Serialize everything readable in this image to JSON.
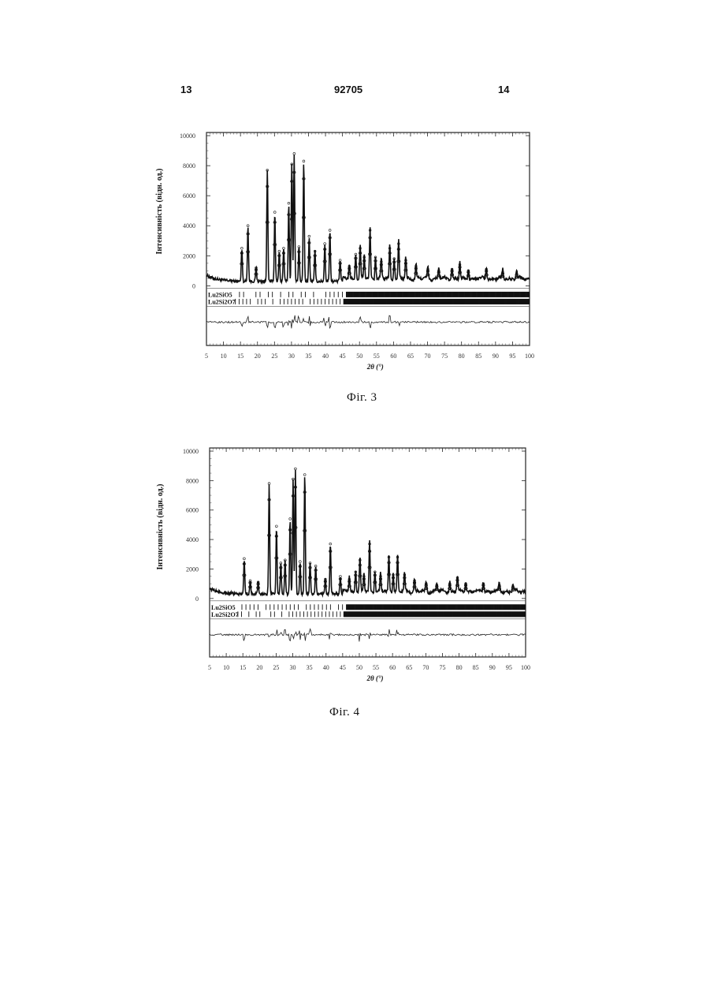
{
  "header": {
    "left_page": "13",
    "patent_number": "92705",
    "right_page": "14"
  },
  "figures": [
    {
      "caption": "Фіг. 3"
    },
    {
      "caption": "Фіг. 4"
    }
  ],
  "chart_data": [
    {
      "type": "line",
      "title": "",
      "xlabel": "2θ (°)",
      "ylabel": "Інтенсивність (відн. од.)",
      "xlim": [
        5,
        100
      ],
      "ylim": [
        0,
        10000
      ],
      "x_ticks": [
        "5",
        "10",
        "15",
        "20",
        "25",
        "30",
        "35",
        "40",
        "45",
        "50",
        "55",
        "60",
        "65",
        "70",
        "75",
        "80",
        "85",
        "90",
        "95",
        "100"
      ],
      "y_ticks": [
        "0",
        "2000",
        "4000",
        "6000",
        "8000",
        "10000"
      ],
      "background": 300,
      "peaks": [
        [
          15.4,
          2200
        ],
        [
          17.2,
          3700
        ],
        [
          19.6,
          900
        ],
        [
          22.9,
          7400
        ],
        [
          25.1,
          4600
        ],
        [
          26.4,
          2000
        ],
        [
          27.7,
          2200
        ],
        [
          29.2,
          5200
        ],
        [
          30.1,
          7800
        ],
        [
          30.8,
          8500
        ],
        [
          32.2,
          2300
        ],
        [
          33.6,
          8000
        ],
        [
          35.2,
          3000
        ],
        [
          36.9,
          2000
        ],
        [
          39.8,
          2500
        ],
        [
          41.3,
          3400
        ],
        [
          44.3,
          1400
        ],
        [
          47.0,
          1000
        ],
        [
          48.9,
          1800
        ],
        [
          50.2,
          2200
        ],
        [
          51.4,
          1600
        ],
        [
          53.1,
          3400
        ],
        [
          54.7,
          1600
        ],
        [
          56.4,
          1300
        ],
        [
          58.9,
          2200
        ],
        [
          60.2,
          1500
        ],
        [
          61.5,
          2500
        ],
        [
          63.6,
          1400
        ],
        [
          66.6,
          1000
        ],
        [
          70.1,
          800
        ],
        [
          73.3,
          700
        ],
        [
          77.2,
          800
        ],
        [
          79.5,
          1100
        ],
        [
          82.0,
          700
        ],
        [
          87.3,
          800
        ],
        [
          92.1,
          600
        ],
        [
          96.2,
          500
        ]
      ],
      "phases": [
        {
          "name": "Lu2SiO5"
        },
        {
          "name": "Lu2Si2O7"
        }
      ]
    },
    {
      "type": "line",
      "title": "",
      "xlabel": "2θ (°)",
      "ylabel": "Інтенсивність (відн. од.)",
      "xlim": [
        5,
        100
      ],
      "ylim": [
        0,
        10000
      ],
      "x_ticks": [
        "5",
        "10",
        "15",
        "20",
        "25",
        "30",
        "35",
        "40",
        "45",
        "50",
        "55",
        "60",
        "65",
        "70",
        "75",
        "80",
        "85",
        "90",
        "95",
        "100"
      ],
      "y_ticks": [
        "0",
        "2000",
        "4000",
        "6000",
        "8000",
        "10000"
      ],
      "background": 300,
      "peaks": [
        [
          15.4,
          2400
        ],
        [
          17.2,
          900
        ],
        [
          19.6,
          800
        ],
        [
          22.9,
          7500
        ],
        [
          25.1,
          4600
        ],
        [
          26.4,
          2100
        ],
        [
          27.7,
          2300
        ],
        [
          29.2,
          5100
        ],
        [
          30.1,
          7800
        ],
        [
          30.8,
          8500
        ],
        [
          32.2,
          2200
        ],
        [
          33.6,
          8100
        ],
        [
          35.2,
          2100
        ],
        [
          36.9,
          1900
        ],
        [
          39.8,
          1000
        ],
        [
          41.3,
          3400
        ],
        [
          44.3,
          1200
        ],
        [
          47.0,
          1000
        ],
        [
          48.9,
          1500
        ],
        [
          50.2,
          2300
        ],
        [
          51.4,
          1200
        ],
        [
          53.1,
          3400
        ],
        [
          54.7,
          1500
        ],
        [
          56.4,
          1200
        ],
        [
          58.9,
          2500
        ],
        [
          60.2,
          1300
        ],
        [
          61.5,
          2500
        ],
        [
          63.6,
          1300
        ],
        [
          66.6,
          900
        ],
        [
          70.1,
          700
        ],
        [
          73.3,
          600
        ],
        [
          77.2,
          700
        ],
        [
          79.5,
          1100
        ],
        [
          82.0,
          700
        ],
        [
          87.3,
          700
        ],
        [
          92.1,
          600
        ],
        [
          96.2,
          500
        ]
      ],
      "phases": [
        {
          "name": "Lu2SiO5"
        },
        {
          "name": "Lu2Si2O7"
        }
      ]
    }
  ]
}
